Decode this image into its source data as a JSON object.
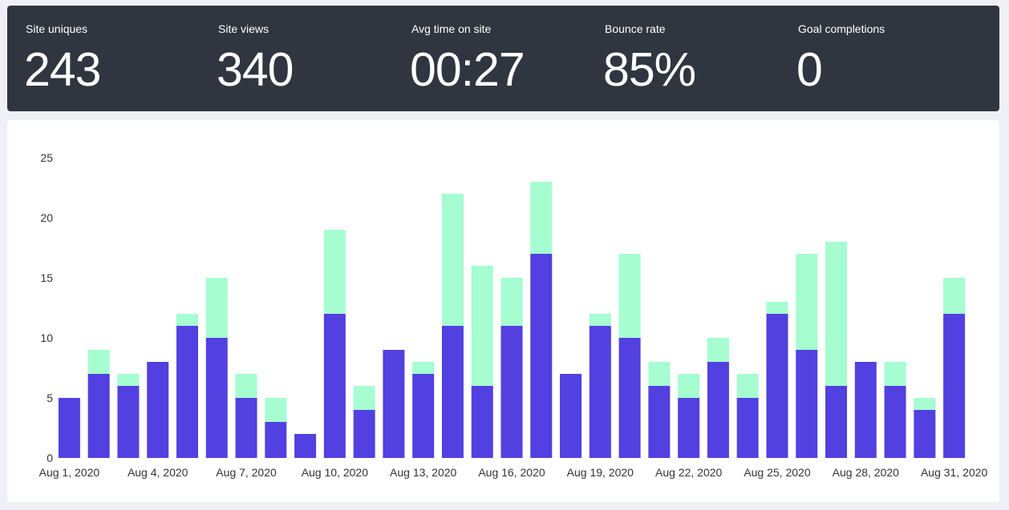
{
  "stats": [
    {
      "label": "Site uniques",
      "value": "243"
    },
    {
      "label": "Site views",
      "value": "340"
    },
    {
      "label": "Avg time on site",
      "value": "00:27"
    },
    {
      "label": "Bounce rate",
      "value": "85%"
    },
    {
      "label": "Goal completions",
      "value": "0"
    }
  ],
  "colors": {
    "stats_background": "#2f3640",
    "series_uniques": "#5240e0",
    "series_extra": "#a5fdd0",
    "axis_text": "#333333"
  },
  "chart_data": {
    "type": "bar",
    "stacked": true,
    "title": "",
    "xlabel": "",
    "ylabel": "",
    "ylim": [
      0,
      25
    ],
    "yticks": [
      0,
      5,
      10,
      15,
      20,
      25
    ],
    "grid": false,
    "legend": "none",
    "categories": [
      "Aug 1, 2020",
      "Aug 2, 2020",
      "Aug 3, 2020",
      "Aug 4, 2020",
      "Aug 5, 2020",
      "Aug 6, 2020",
      "Aug 7, 2020",
      "Aug 8, 2020",
      "Aug 9, 2020",
      "Aug 10, 2020",
      "Aug 11, 2020",
      "Aug 12, 2020",
      "Aug 13, 2020",
      "Aug 14, 2020",
      "Aug 15, 2020",
      "Aug 16, 2020",
      "Aug 17, 2020",
      "Aug 18, 2020",
      "Aug 19, 2020",
      "Aug 20, 2020",
      "Aug 21, 2020",
      "Aug 22, 2020",
      "Aug 23, 2020",
      "Aug 24, 2020",
      "Aug 25, 2020",
      "Aug 26, 2020",
      "Aug 27, 2020",
      "Aug 28, 2020",
      "Aug 29, 2020",
      "Aug 30, 2020",
      "Aug 31, 2020"
    ],
    "xtick_labels": [
      "Aug 1, 2020",
      "Aug 4, 2020",
      "Aug 7, 2020",
      "Aug 10, 2020",
      "Aug 13, 2020",
      "Aug 16, 2020",
      "Aug 19, 2020",
      "Aug 22, 2020",
      "Aug 25, 2020",
      "Aug 28, 2020",
      "Aug 31, 2020"
    ],
    "series": [
      {
        "values": [
          5,
          7,
          6,
          8,
          11,
          10,
          5,
          3,
          2,
          12,
          4,
          9,
          7,
          11,
          6,
          11,
          17,
          7,
          11,
          10,
          6,
          5,
          8,
          5,
          12,
          9,
          6,
          8,
          6,
          4,
          12
        ]
      },
      {
        "values": [
          0,
          2,
          1,
          0,
          1,
          5,
          2,
          2,
          0,
          7,
          2,
          0,
          1,
          11,
          10,
          4,
          6,
          0,
          1,
          7,
          2,
          2,
          2,
          2,
          1,
          8,
          12,
          0,
          2,
          1,
          3
        ]
      }
    ]
  }
}
